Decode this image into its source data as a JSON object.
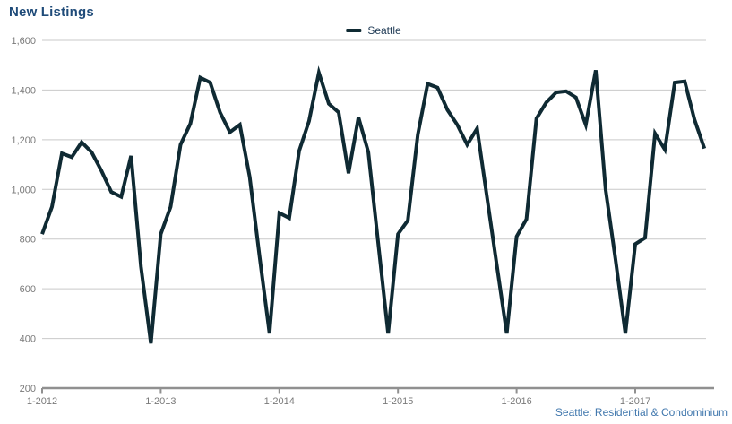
{
  "header": {
    "title": "New Listings"
  },
  "legend": {
    "items": [
      {
        "label": "Seattle",
        "color": "#0f2a33"
      }
    ]
  },
  "footer": {
    "source": "Seattle: Residential & Condominium"
  },
  "colors": {
    "title": "#1f4b79",
    "axis_label": "#7a7a7a",
    "gridline": "#c9c9c9",
    "axis_line": "#909090",
    "series": "#0f2a33",
    "source_text": "#4077ad",
    "legend_text": "#1f3a55"
  },
  "chart_data": {
    "type": "line",
    "title": "New Listings",
    "legend_position": "top-center",
    "grid": "horizontal",
    "x_start": "2012-01",
    "x_end": "2017-08",
    "points_per_year": 12,
    "x_tick_labels": [
      "1-2012",
      "1-2013",
      "1-2014",
      "1-2015",
      "1-2016",
      "1-2017"
    ],
    "x_tick_month_indexes": [
      0,
      12,
      24,
      36,
      48,
      60
    ],
    "ylim": [
      200,
      1600
    ],
    "y_tick_values": [
      200,
      400,
      600,
      800,
      1000,
      1200,
      1400,
      1600
    ],
    "y_tick_labels": [
      "200",
      "400",
      "600",
      "800",
      "1,000",
      "1,200",
      "1,400",
      "1,600"
    ],
    "series": [
      {
        "name": "Seattle",
        "color": "#0f2a33",
        "values": [
          820,
          930,
          1145,
          1130,
          1190,
          1150,
          1075,
          990,
          970,
          1135,
          690,
          380,
          820,
          930,
          1180,
          1265,
          1450,
          1430,
          1310,
          1230,
          1260,
          1050,
          730,
          420,
          905,
          885,
          1155,
          1275,
          1470,
          1345,
          1310,
          1065,
          1290,
          1150,
          785,
          420,
          820,
          875,
          1220,
          1425,
          1410,
          1320,
          1260,
          1180,
          1245,
          970,
          695,
          420,
          810,
          880,
          1285,
          1350,
          1390,
          1395,
          1370,
          1260,
          1480,
          1000,
          720,
          420,
          780,
          805,
          1225,
          1160,
          1430,
          1435,
          1280,
          1165
        ]
      }
    ],
    "source_note": "Seattle: Residential & Condominium"
  }
}
